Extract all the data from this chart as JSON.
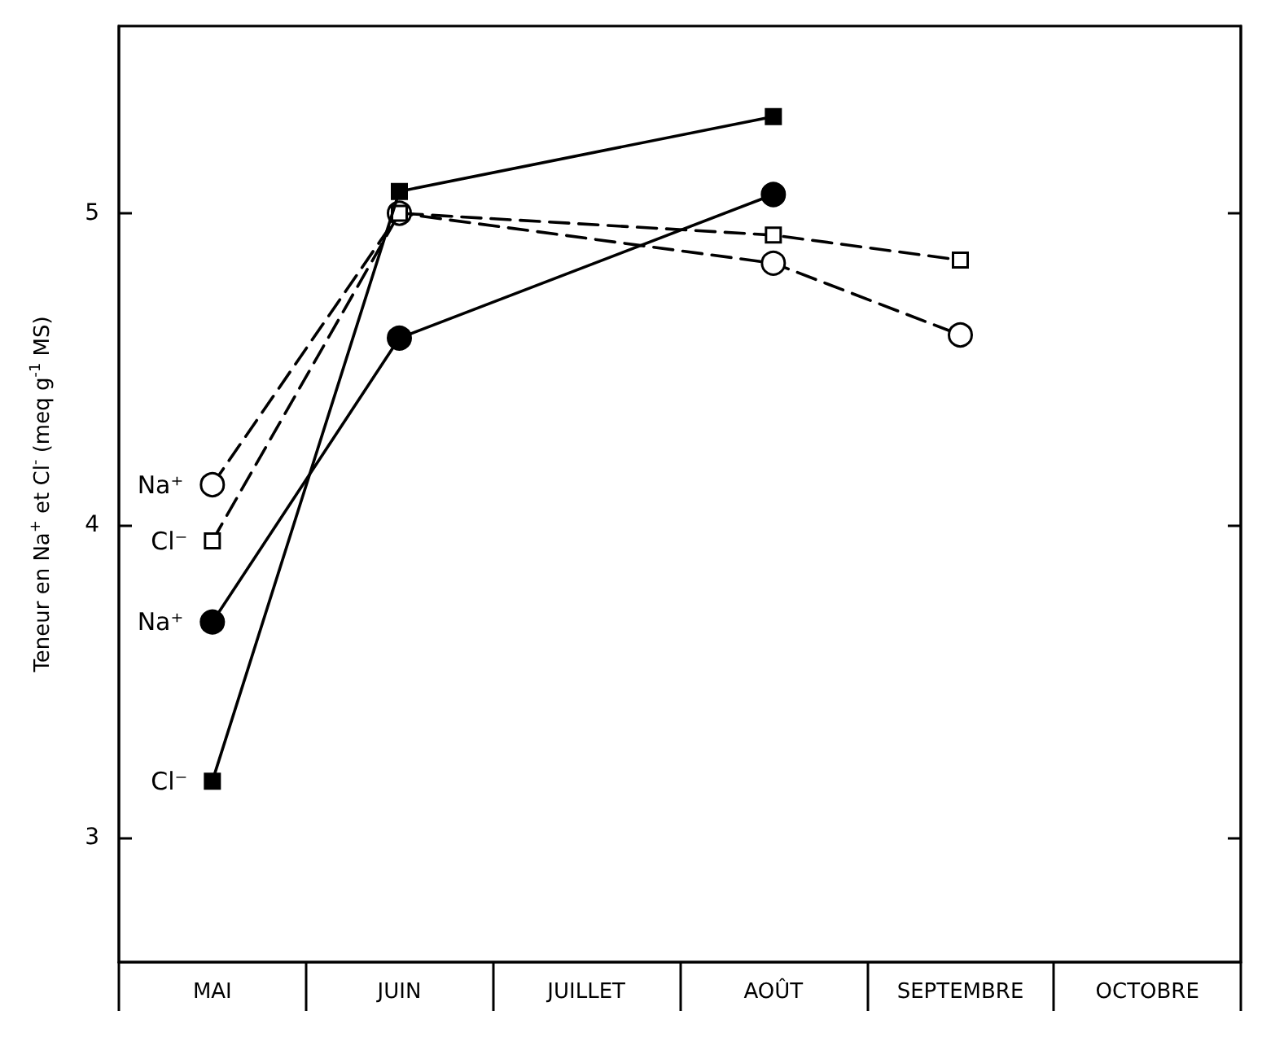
{
  "chart_data": {
    "type": "line",
    "ylabel": "Teneur en Na$^{+}$ et Cl$^{-}$ (meq g$^{-1}$ MS)",
    "categories": [
      "MAI",
      "JUIN",
      "JUILLET",
      "AOÛT",
      "SEPTEMBRE",
      "OCTOBRE"
    ],
    "ylim": [
      2.6,
      5.6
    ],
    "yticks": [
      3,
      4,
      5
    ],
    "grid": false,
    "legend": false,
    "series": [
      {
        "name": "Na⁺",
        "color": "#000000",
        "marker": "circle",
        "line_style": "dashed",
        "x": [
          "MAI",
          "JUIN",
          "AOÛT",
          "SEPTEMBRE"
        ],
        "values": [
          4.13,
          5.0,
          4.84,
          4.61
        ]
      },
      {
        "name": "Cl⁻",
        "color": "#000000",
        "marker": "square",
        "line_style": "dashed",
        "x": [
          "MAI",
          "JUIN",
          "AOÛT",
          "SEPTEMBRE"
        ],
        "values": [
          3.95,
          5.0,
          4.93,
          4.85
        ]
      },
      {
        "name": "Na⁺",
        "color": "#000000",
        "marker": "circle",
        "line_style": "solid",
        "x": [
          "MAI",
          "JUIN",
          "AOÛT"
        ],
        "values": [
          3.69,
          4.6,
          5.06
        ]
      },
      {
        "name": "Cl⁻",
        "color": "#000000",
        "marker": "square",
        "line_style": "solid",
        "x": [
          "MAI",
          "JUIN",
          "AOÛT"
        ],
        "values": [
          3.18,
          5.07,
          5.31
        ]
      }
    ]
  }
}
